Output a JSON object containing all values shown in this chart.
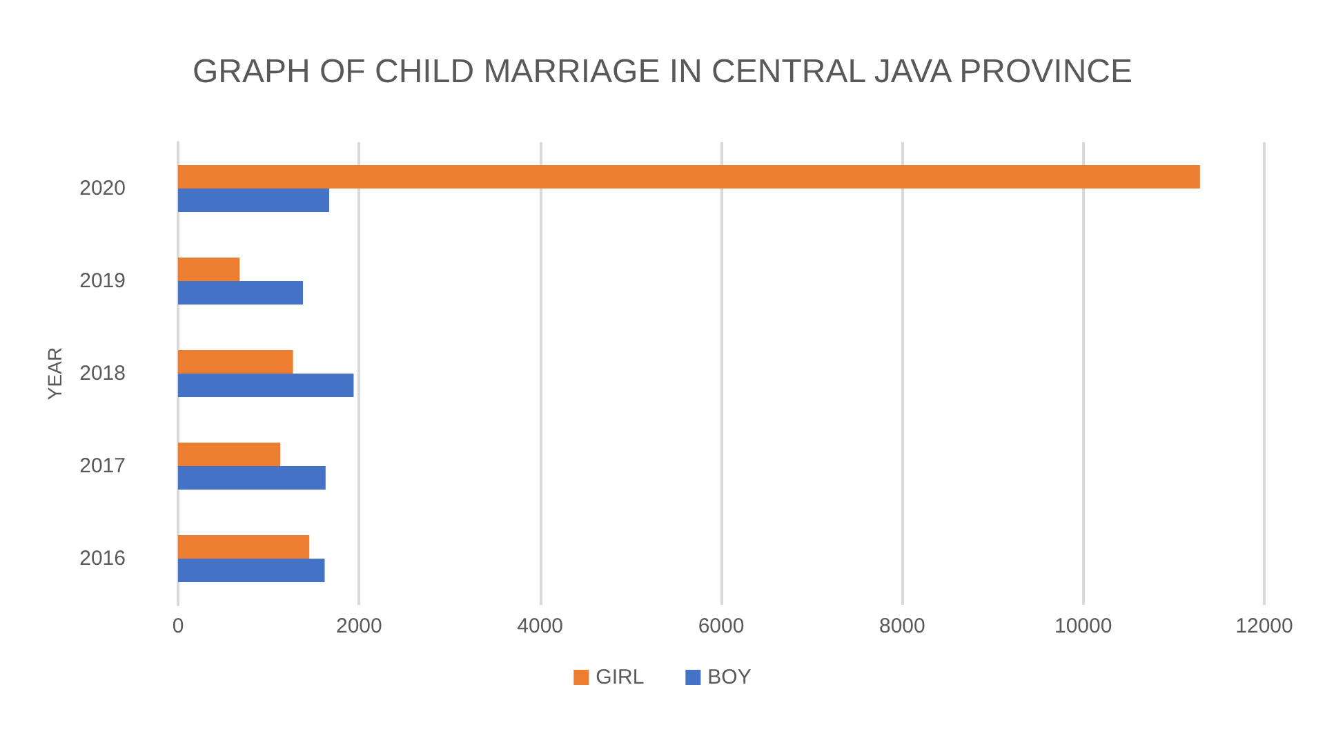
{
  "chart_data": {
    "type": "bar",
    "orientation": "horizontal",
    "title": "GRAPH OF CHILD MARRIAGE IN CENTRAL JAVA PROVINCE",
    "ylabel": "YEAR",
    "categories": [
      "2020",
      "2019",
      "2018",
      "2017",
      "2016"
    ],
    "series": [
      {
        "name": "GIRL",
        "color": "#ed7d31",
        "values": [
          11290,
          680,
          1270,
          1130,
          1450
        ]
      },
      {
        "name": "BOY",
        "color": "#4472c4",
        "values": [
          1670,
          1380,
          1940,
          1630,
          1620
        ]
      }
    ],
    "xlim": [
      0,
      12000
    ],
    "xticks": [
      0,
      2000,
      4000,
      6000,
      8000,
      10000,
      12000
    ],
    "grid": "x",
    "legend": "bottom"
  }
}
